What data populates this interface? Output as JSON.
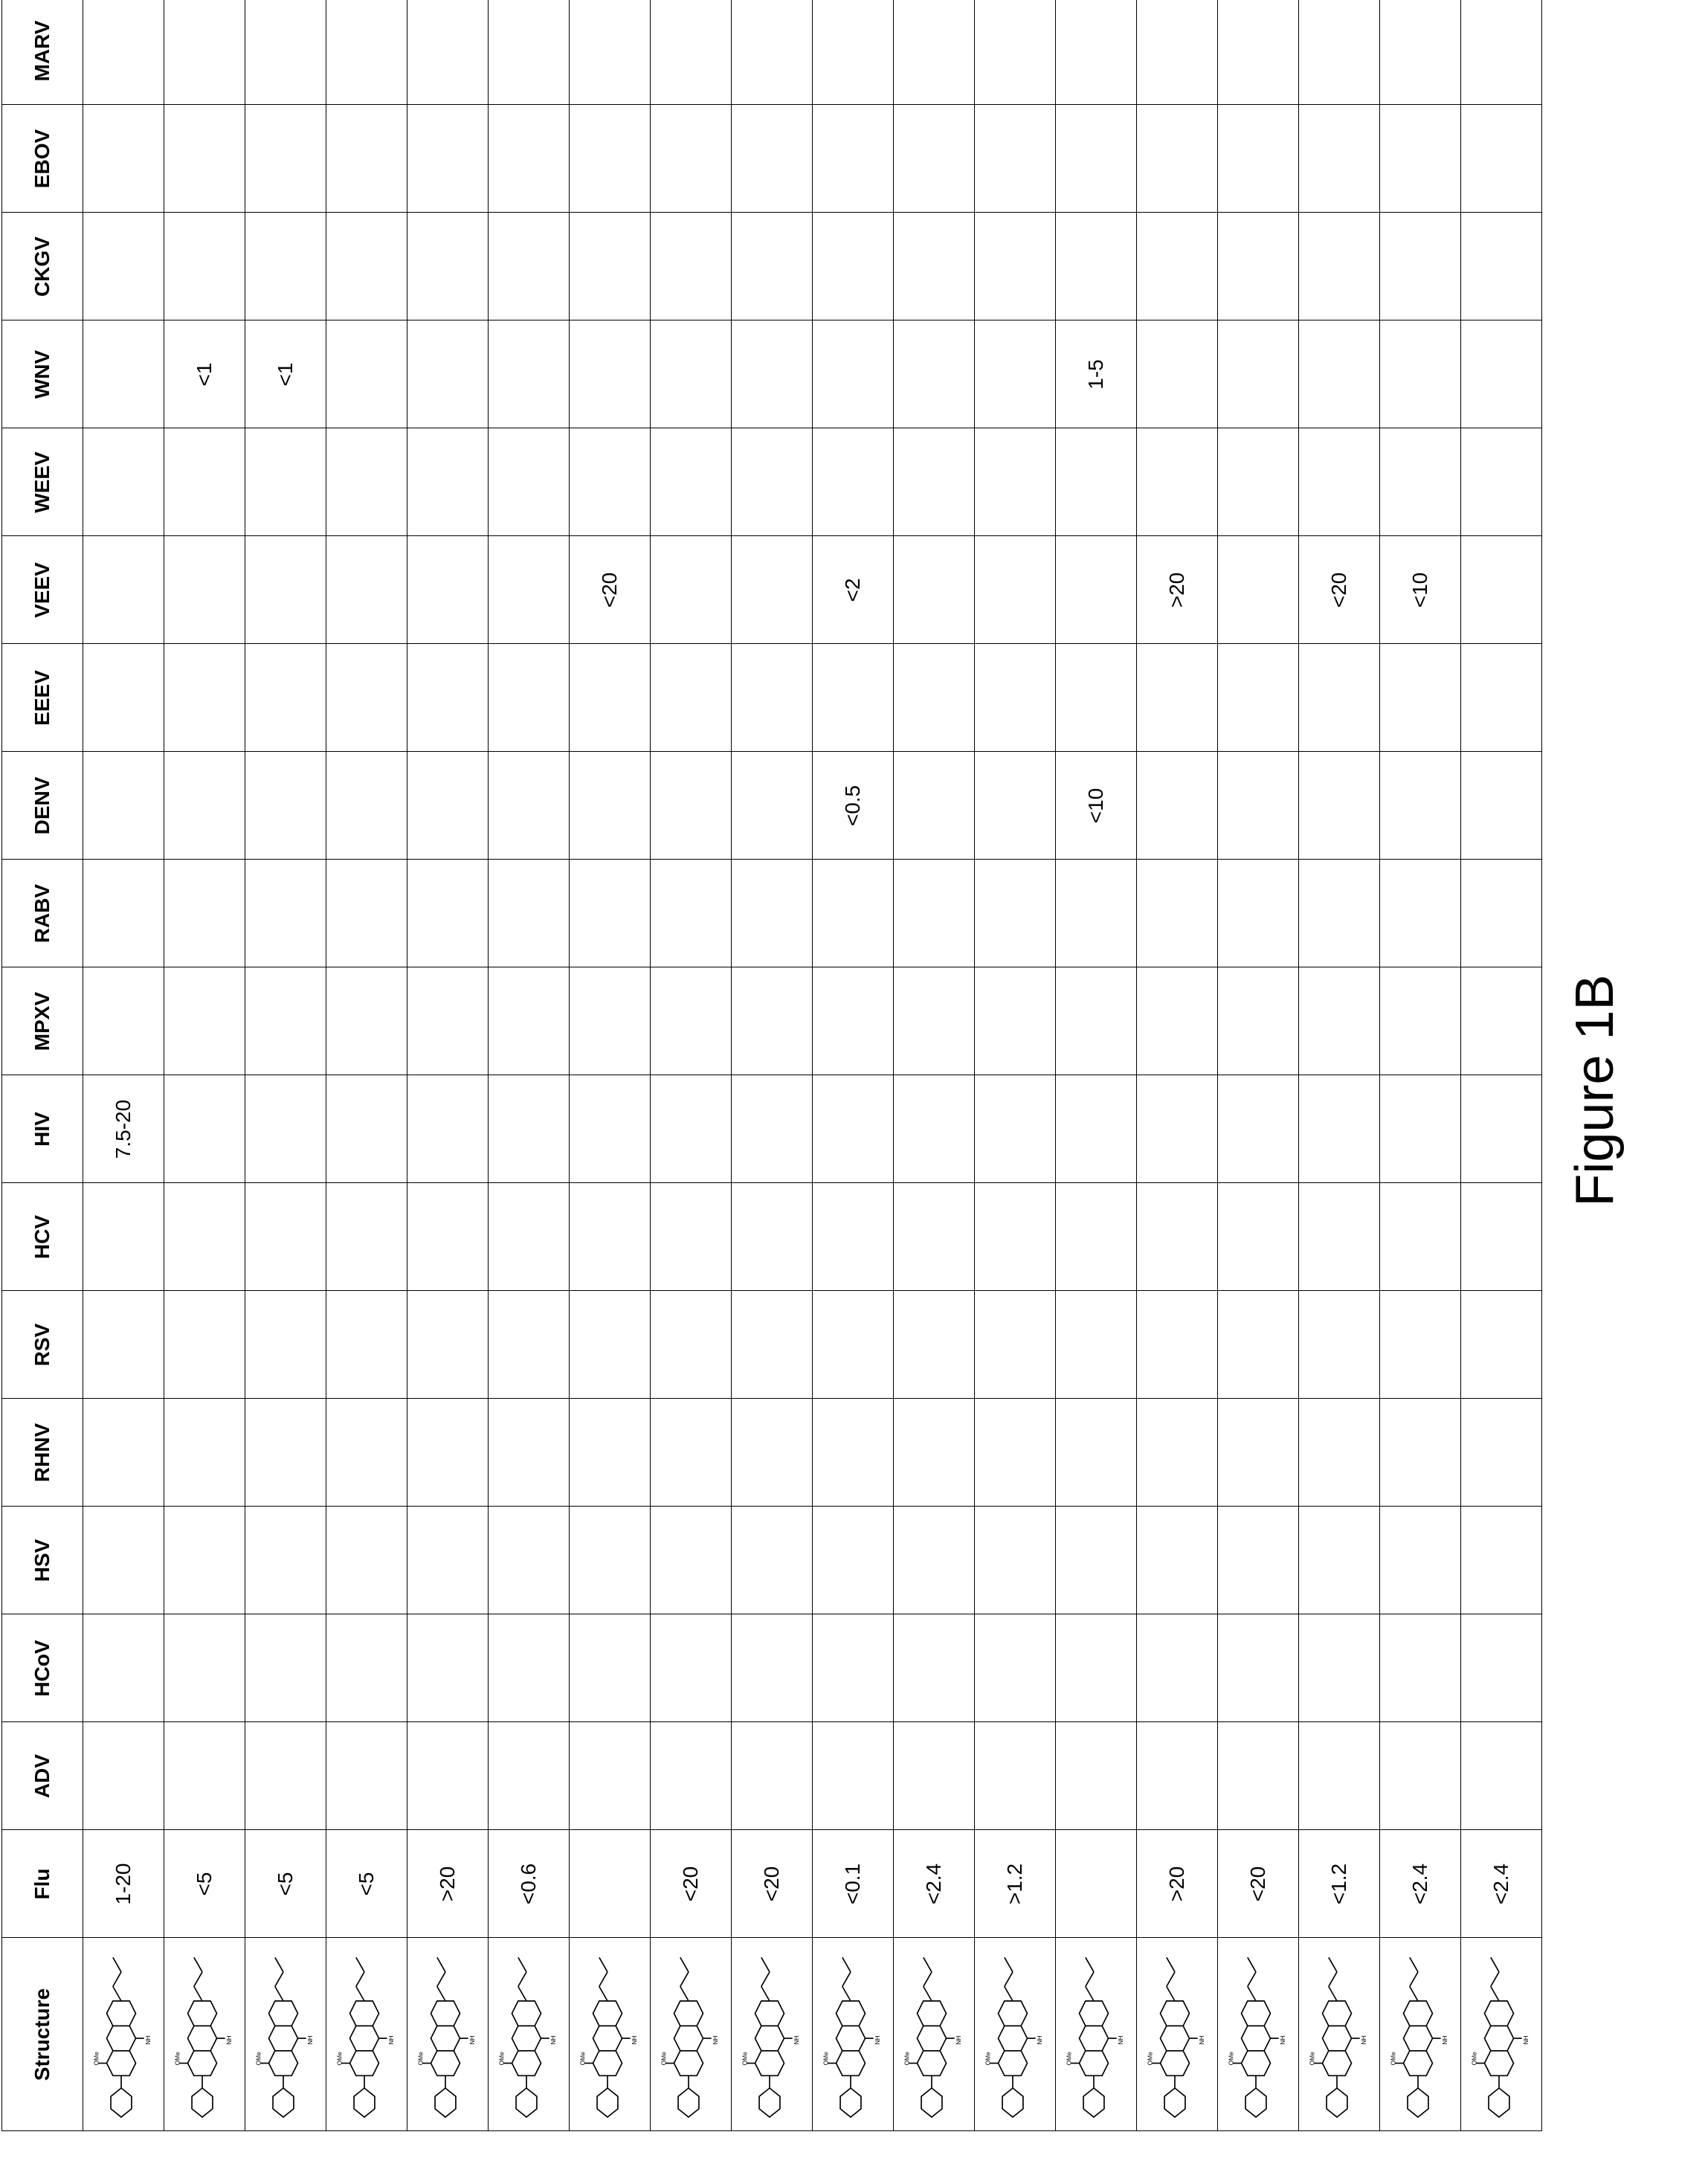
{
  "figure": {
    "caption": "Figure 1B",
    "table": {
      "type": "table",
      "background_color": "#ffffff",
      "grid_color": "#000000",
      "header_fontsize": 28,
      "cell_fontsize": 28,
      "columns": [
        "Structure",
        "Flu",
        "ADV",
        "HCoV",
        "HSV",
        "RHNV",
        "RSV",
        "HCV",
        "HIV",
        "MPXV",
        "RABV",
        "DENV",
        "EEEV",
        "VEEV",
        "WEEV",
        "WNV",
        "CKGV",
        "EBOV",
        "MARV"
      ],
      "rows": [
        {
          "structure": "mol1",
          "Flu": "1-20",
          "ADV": "",
          "HCoV": "",
          "HSV": "",
          "RHNV": "",
          "RSV": "",
          "HCV": "",
          "HIV": "7.5-20",
          "MPXV": "",
          "RABV": "",
          "DENV": "",
          "EEEV": "",
          "VEEV": "",
          "WEEV": "",
          "WNV": "",
          "CKGV": "",
          "EBOV": "",
          "MARV": ""
        },
        {
          "structure": "mol2",
          "Flu": "<5",
          "ADV": "",
          "HCoV": "",
          "HSV": "",
          "RHNV": "",
          "RSV": "",
          "HCV": "",
          "HIV": "",
          "MPXV": "",
          "RABV": "",
          "DENV": "",
          "EEEV": "",
          "VEEV": "",
          "WEEV": "",
          "WNV": "<1",
          "CKGV": "",
          "EBOV": "",
          "MARV": ""
        },
        {
          "structure": "mol3",
          "Flu": "<5",
          "ADV": "",
          "HCoV": "",
          "HSV": "",
          "RHNV": "",
          "RSV": "",
          "HCV": "",
          "HIV": "",
          "MPXV": "",
          "RABV": "",
          "DENV": "",
          "EEEV": "",
          "VEEV": "",
          "WEEV": "",
          "WNV": "<1",
          "CKGV": "",
          "EBOV": "",
          "MARV": ""
        },
        {
          "structure": "mol4",
          "Flu": "<5",
          "ADV": "",
          "HCoV": "",
          "HSV": "",
          "RHNV": "",
          "RSV": "",
          "HCV": "",
          "HIV": "",
          "MPXV": "",
          "RABV": "",
          "DENV": "",
          "EEEV": "",
          "VEEV": "",
          "WEEV": "",
          "WNV": "",
          "CKGV": "",
          "EBOV": "",
          "MARV": ""
        },
        {
          "structure": "mol5",
          "Flu": ">20",
          "ADV": "",
          "HCoV": "",
          "HSV": "",
          "RHNV": "",
          "RSV": "",
          "HCV": "",
          "HIV": "",
          "MPXV": "",
          "RABV": "",
          "DENV": "",
          "EEEV": "",
          "VEEV": "",
          "WEEV": "",
          "WNV": "",
          "CKGV": "",
          "EBOV": "",
          "MARV": ""
        },
        {
          "structure": "mol6",
          "Flu": "<0.6",
          "ADV": "",
          "HCoV": "",
          "HSV": "",
          "RHNV": "",
          "RSV": "",
          "HCV": "",
          "HIV": "",
          "MPXV": "",
          "RABV": "",
          "DENV": "",
          "EEEV": "",
          "VEEV": "",
          "WEEV": "",
          "WNV": "",
          "CKGV": "",
          "EBOV": "",
          "MARV": ""
        },
        {
          "structure": "mol7",
          "Flu": "",
          "ADV": "",
          "HCoV": "",
          "HSV": "",
          "RHNV": "",
          "RSV": "",
          "HCV": "",
          "HIV": "",
          "MPXV": "",
          "RABV": "",
          "DENV": "",
          "EEEV": "",
          "VEEV": "<20",
          "WEEV": "",
          "WNV": "",
          "CKGV": "",
          "EBOV": "",
          "MARV": ""
        },
        {
          "structure": "mol8",
          "Flu": "<20",
          "ADV": "",
          "HCoV": "",
          "HSV": "",
          "RHNV": "",
          "RSV": "",
          "HCV": "",
          "HIV": "",
          "MPXV": "",
          "RABV": "",
          "DENV": "",
          "EEEV": "",
          "VEEV": "",
          "WEEV": "",
          "WNV": "",
          "CKGV": "",
          "EBOV": "",
          "MARV": ""
        },
        {
          "structure": "mol9",
          "Flu": "<20",
          "ADV": "",
          "HCoV": "",
          "HSV": "",
          "RHNV": "",
          "RSV": "",
          "HCV": "",
          "HIV": "",
          "MPXV": "",
          "RABV": "",
          "DENV": "",
          "EEEV": "",
          "VEEV": "",
          "WEEV": "",
          "WNV": "",
          "CKGV": "",
          "EBOV": "",
          "MARV": ""
        },
        {
          "structure": "mol10",
          "Flu": "<0.1",
          "ADV": "",
          "HCoV": "",
          "HSV": "",
          "RHNV": "",
          "RSV": "",
          "HCV": "",
          "HIV": "",
          "MPXV": "",
          "RABV": "",
          "DENV": "<0.5",
          "EEEV": "",
          "VEEV": "<2",
          "WEEV": "",
          "WNV": "",
          "CKGV": "",
          "EBOV": "",
          "MARV": ""
        },
        {
          "structure": "mol11",
          "Flu": "<2.4",
          "ADV": "",
          "HCoV": "",
          "HSV": "",
          "RHNV": "",
          "RSV": "",
          "HCV": "",
          "HIV": "",
          "MPXV": "",
          "RABV": "",
          "DENV": "",
          "EEEV": "",
          "VEEV": "",
          "WEEV": "",
          "WNV": "",
          "CKGV": "",
          "EBOV": "",
          "MARV": ""
        },
        {
          "structure": "mol12",
          "Flu": ">1.2",
          "ADV": "",
          "HCoV": "",
          "HSV": "",
          "RHNV": "",
          "RSV": "",
          "HCV": "",
          "HIV": "",
          "MPXV": "",
          "RABV": "",
          "DENV": "",
          "EEEV": "",
          "VEEV": "",
          "WEEV": "",
          "WNV": "",
          "CKGV": "",
          "EBOV": "",
          "MARV": ""
        },
        {
          "structure": "mol13",
          "Flu": "",
          "ADV": "",
          "HCoV": "",
          "HSV": "",
          "RHNV": "",
          "RSV": "",
          "HCV": "",
          "HIV": "",
          "MPXV": "",
          "RABV": "",
          "DENV": "<10",
          "EEEV": "",
          "VEEV": "",
          "WEEV": "",
          "WNV": "1-5",
          "CKGV": "",
          "EBOV": "",
          "MARV": ""
        },
        {
          "structure": "mol14",
          "Flu": ">20",
          "ADV": "",
          "HCoV": "",
          "HSV": "",
          "RHNV": "",
          "RSV": "",
          "HCV": "",
          "HIV": "",
          "MPXV": "",
          "RABV": "",
          "DENV": "",
          "EEEV": "",
          "VEEV": ">20",
          "WEEV": "",
          "WNV": "",
          "CKGV": "",
          "EBOV": "",
          "MARV": ""
        },
        {
          "structure": "mol15",
          "Flu": "<20",
          "ADV": "",
          "HCoV": "",
          "HSV": "",
          "RHNV": "",
          "RSV": "",
          "HCV": "",
          "HIV": "",
          "MPXV": "",
          "RABV": "",
          "DENV": "",
          "EEEV": "",
          "VEEV": "",
          "WEEV": "",
          "WNV": "",
          "CKGV": "",
          "EBOV": "",
          "MARV": ""
        },
        {
          "structure": "mol16",
          "Flu": "<1.2",
          "ADV": "",
          "HCoV": "",
          "HSV": "",
          "RHNV": "",
          "RSV": "",
          "HCV": "",
          "HIV": "",
          "MPXV": "",
          "RABV": "",
          "DENV": "",
          "EEEV": "",
          "VEEV": "<20",
          "WEEV": "",
          "WNV": "",
          "CKGV": "",
          "EBOV": "",
          "MARV": ""
        },
        {
          "structure": "mol17",
          "Flu": "<2.4",
          "ADV": "",
          "HCoV": "",
          "HSV": "",
          "RHNV": "",
          "RSV": "",
          "HCV": "",
          "HIV": "",
          "MPXV": "",
          "RABV": "",
          "DENV": "",
          "EEEV": "",
          "VEEV": "<10",
          "WEEV": "",
          "WNV": "",
          "CKGV": "",
          "EBOV": "",
          "MARV": ""
        },
        {
          "structure": "mol18",
          "Flu": "<2.4",
          "ADV": "",
          "HCoV": "",
          "HSV": "",
          "RHNV": "",
          "RSV": "",
          "HCV": "",
          "HIV": "",
          "MPXV": "",
          "RABV": "",
          "DENV": "",
          "EEEV": "",
          "VEEV": "",
          "WEEV": "",
          "WNV": "",
          "CKGV": "",
          "EBOV": "",
          "MARV": ""
        }
      ]
    }
  }
}
